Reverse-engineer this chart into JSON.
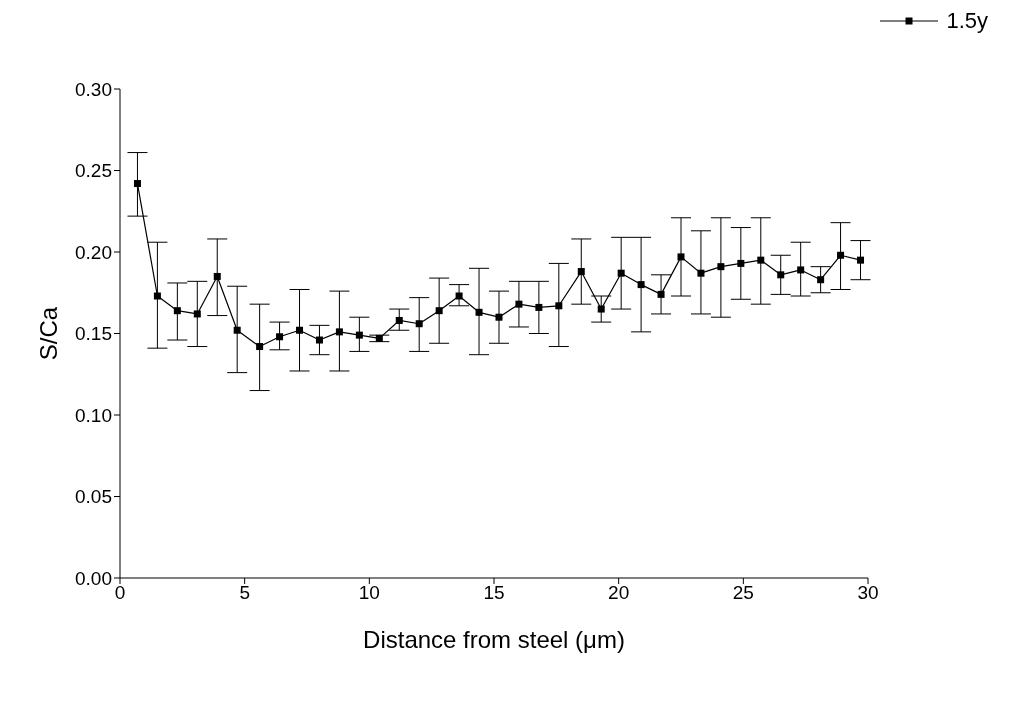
{
  "chart_data": {
    "type": "line",
    "xlabel": "Distance from steel (μm)",
    "ylabel": "S/Ca",
    "x": [
      0.7,
      1.5,
      2.3,
      3.1,
      3.9,
      4.7,
      5.6,
      6.4,
      7.2,
      8.0,
      8.8,
      9.6,
      10.4,
      11.2,
      12.0,
      12.8,
      13.6,
      14.4,
      15.2,
      16.0,
      16.8,
      17.6,
      18.5,
      19.3,
      20.1,
      20.9,
      21.7,
      22.5,
      23.3,
      24.1,
      24.9,
      25.7,
      26.5,
      27.3,
      28.1,
      28.9,
      29.7
    ],
    "series": [
      {
        "name": "1.5y",
        "color": "#000000",
        "values": [
          0.242,
          0.173,
          0.164,
          0.162,
          0.185,
          0.152,
          0.142,
          0.148,
          0.152,
          0.146,
          0.151,
          0.149,
          0.147,
          0.158,
          0.156,
          0.164,
          0.173,
          0.163,
          0.16,
          0.168,
          0.166,
          0.167,
          0.188,
          0.165,
          0.187,
          0.18,
          0.174,
          0.197,
          0.187,
          0.191,
          0.193,
          0.195,
          0.186,
          0.189,
          0.183,
          0.198,
          0.195
        ],
        "errors": [
          [
            0.222,
            0.261
          ],
          [
            0.141,
            0.206
          ],
          [
            0.146,
            0.181
          ],
          [
            0.142,
            0.182
          ],
          [
            0.161,
            0.208
          ],
          [
            0.126,
            0.179
          ],
          [
            0.115,
            0.168
          ],
          [
            0.14,
            0.157
          ],
          [
            0.127,
            0.177
          ],
          [
            0.137,
            0.155
          ],
          [
            0.127,
            0.176
          ],
          [
            0.139,
            0.16
          ],
          [
            0.145,
            0.149
          ],
          [
            0.152,
            0.165
          ],
          [
            0.139,
            0.172
          ],
          [
            0.144,
            0.184
          ],
          [
            0.167,
            0.18
          ],
          [
            0.137,
            0.19
          ],
          [
            0.144,
            0.176
          ],
          [
            0.154,
            0.182
          ],
          [
            0.15,
            0.182
          ],
          [
            0.142,
            0.193
          ],
          [
            0.168,
            0.208
          ],
          [
            0.157,
            0.173
          ],
          [
            0.165,
            0.209
          ],
          [
            0.151,
            0.209
          ],
          [
            0.162,
            0.186
          ],
          [
            0.173,
            0.221
          ],
          [
            0.162,
            0.213
          ],
          [
            0.16,
            0.221
          ],
          [
            0.171,
            0.215
          ],
          [
            0.168,
            0.221
          ],
          [
            0.174,
            0.198
          ],
          [
            0.173,
            0.206
          ],
          [
            0.175,
            0.191
          ],
          [
            0.177,
            0.218
          ],
          [
            0.183,
            0.207
          ]
        ]
      }
    ],
    "xlim": [
      0,
      30
    ],
    "xticks": [
      0,
      5,
      10,
      15,
      20,
      25,
      30
    ],
    "ylim": [
      0,
      0.3
    ],
    "yticks": [
      {
        "value": 0,
        "label": "0.00"
      },
      {
        "value": 0.05,
        "label": "0.05"
      },
      {
        "value": 0.1,
        "label": "0.10"
      },
      {
        "value": 0.15,
        "label": "0.15"
      },
      {
        "value": 0.2,
        "label": "0.20"
      },
      {
        "value": 0.25,
        "label": "0.25"
      },
      {
        "value": 0.3,
        "label": "0.30"
      }
    ],
    "grid": false,
    "legend": "top right",
    "marker": "square",
    "line_style": "solid"
  }
}
